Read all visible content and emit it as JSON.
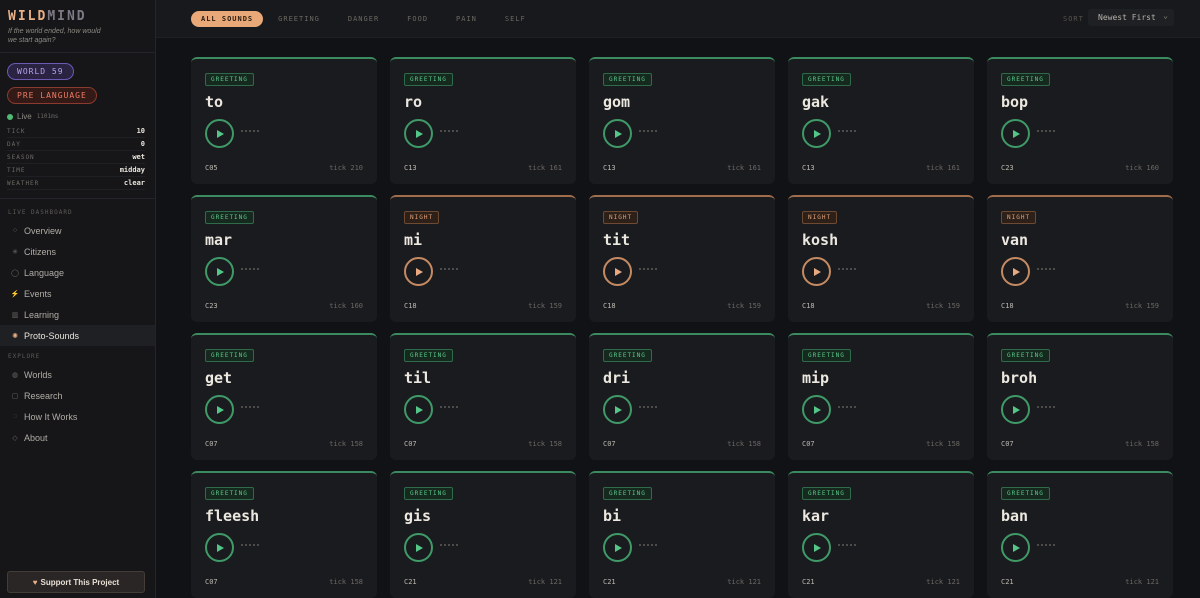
{
  "brand": {
    "logo_a": "WILD",
    "logo_b": "MIND",
    "tagline": "If the world ended, how would we start again?"
  },
  "world_badge": "WORLD 59",
  "stage_badge": "PRE LANGUAGE",
  "live": {
    "label": "Live",
    "latency": "1101ms"
  },
  "stats": [
    {
      "key": "TICK",
      "value": "10"
    },
    {
      "key": "DAY",
      "value": "0"
    },
    {
      "key": "SEASON",
      "value": "wet"
    },
    {
      "key": "TIME",
      "value": "midday"
    },
    {
      "key": "WEATHER",
      "value": "clear"
    }
  ],
  "live_dashboard": {
    "heading": "LIVE DASHBOARD",
    "items": [
      {
        "label": "Overview",
        "icon": "circle-icon",
        "glyph": "○"
      },
      {
        "label": "Citizens",
        "icon": "sparkle-icon",
        "glyph": "✳"
      },
      {
        "label": "Language",
        "icon": "chat-icon",
        "glyph": "◯"
      },
      {
        "label": "Events",
        "icon": "bolt-icon",
        "glyph": "⚡"
      },
      {
        "label": "Learning",
        "icon": "book-icon",
        "glyph": "▥"
      },
      {
        "label": "Proto-Sounds",
        "icon": "sound-icon",
        "glyph": "✺",
        "active": true
      }
    ]
  },
  "explore": {
    "heading": "EXPLORE",
    "items": [
      {
        "label": "Worlds",
        "icon": "globe-icon",
        "glyph": "◍"
      },
      {
        "label": "Research",
        "icon": "document-icon",
        "glyph": "▢"
      },
      {
        "label": "How It Works",
        "icon": "info-icon",
        "glyph": "◌"
      },
      {
        "label": "About",
        "icon": "about-icon",
        "glyph": "◇"
      }
    ]
  },
  "support_label": "Support This Project",
  "filters": [
    "ALL SOUNDS",
    "GREETING",
    "DANGER",
    "FOOD",
    "PAIN",
    "SELF"
  ],
  "sort": {
    "label": "SORT",
    "value": "Newest First"
  },
  "sounds": [
    {
      "tag": "GREETING",
      "word": "to",
      "citizen": "C05",
      "tick": "tick 210"
    },
    {
      "tag": "GREETING",
      "word": "ro",
      "citizen": "C13",
      "tick": "tick 161"
    },
    {
      "tag": "GREETING",
      "word": "gom",
      "citizen": "C13",
      "tick": "tick 161"
    },
    {
      "tag": "GREETING",
      "word": "gak",
      "citizen": "C13",
      "tick": "tick 161"
    },
    {
      "tag": "GREETING",
      "word": "bop",
      "citizen": "C23",
      "tick": "tick 160"
    },
    {
      "tag": "GREETING",
      "word": "mar",
      "citizen": "C23",
      "tick": "tick 160"
    },
    {
      "tag": "NIGHT",
      "word": "mi",
      "citizen": "C18",
      "tick": "tick 159"
    },
    {
      "tag": "NIGHT",
      "word": "tit",
      "citizen": "C18",
      "tick": "tick 159"
    },
    {
      "tag": "NIGHT",
      "word": "kosh",
      "citizen": "C18",
      "tick": "tick 159"
    },
    {
      "tag": "NIGHT",
      "word": "van",
      "citizen": "C18",
      "tick": "tick 159"
    },
    {
      "tag": "GREETING",
      "word": "get",
      "citizen": "C07",
      "tick": "tick 158"
    },
    {
      "tag": "GREETING",
      "word": "til",
      "citizen": "C07",
      "tick": "tick 158"
    },
    {
      "tag": "GREETING",
      "word": "dri",
      "citizen": "C07",
      "tick": "tick 158"
    },
    {
      "tag": "GREETING",
      "word": "mip",
      "citizen": "C07",
      "tick": "tick 158"
    },
    {
      "tag": "GREETING",
      "word": "broh",
      "citizen": "C07",
      "tick": "tick 158"
    },
    {
      "tag": "GREETING",
      "word": "fleesh",
      "citizen": "C07",
      "tick": "tick 158"
    },
    {
      "tag": "GREETING",
      "word": "gis",
      "citizen": "C21",
      "tick": "tick 121"
    },
    {
      "tag": "GREETING",
      "word": "bi",
      "citizen": "C21",
      "tick": "tick 121"
    },
    {
      "tag": "GREETING",
      "word": "kar",
      "citizen": "C21",
      "tick": "tick 121"
    },
    {
      "tag": "GREETING",
      "word": "ban",
      "citizen": "C21",
      "tick": "tick 121"
    }
  ],
  "colors": {
    "accent": "#e8a878",
    "greeting": "#5bc98a",
    "night": "#e0a27b",
    "world": "#b6a4f0",
    "pre_language": "#ea7c65"
  }
}
